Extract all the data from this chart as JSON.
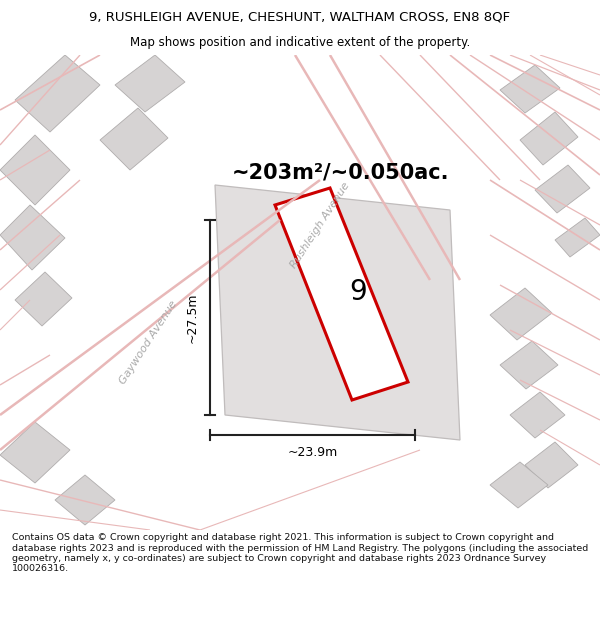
{
  "title_line1": "9, RUSHLEIGH AVENUE, CHESHUNT, WALTHAM CROSS, EN8 8QF",
  "title_line2": "Map shows position and indicative extent of the property.",
  "area_text": "~203m²/~0.050ac.",
  "property_number": "9",
  "dim_width": "~23.9m",
  "dim_height": "~27.5m",
  "footer_text": "Contains OS data © Crown copyright and database right 2021. This information is subject to Crown copyright and database rights 2023 and is reproduced with the permission of HM Land Registry. The polygons (including the associated geometry, namely x, y co-ordinates) are subject to Crown copyright and database rights 2023 Ordnance Survey 100026316.",
  "map_bg": "#f0eeee",
  "road_color": "#e8b8b8",
  "plot_outline_color": "#cc0000",
  "building_fill": "#d6d3d3",
  "building_edge": "#b0adad",
  "parcel_fill": "#e2dfdf",
  "parcel_edge": "#c0bcbc",
  "dim_line_color": "#222222",
  "street_label_color": "#aaaaaa",
  "title_fontsize": 9.5,
  "subtitle_fontsize": 8.5,
  "area_fontsize": 15,
  "number_fontsize": 20,
  "dim_fontsize": 9,
  "street_fontsize": 8,
  "footer_fontsize": 6.8
}
